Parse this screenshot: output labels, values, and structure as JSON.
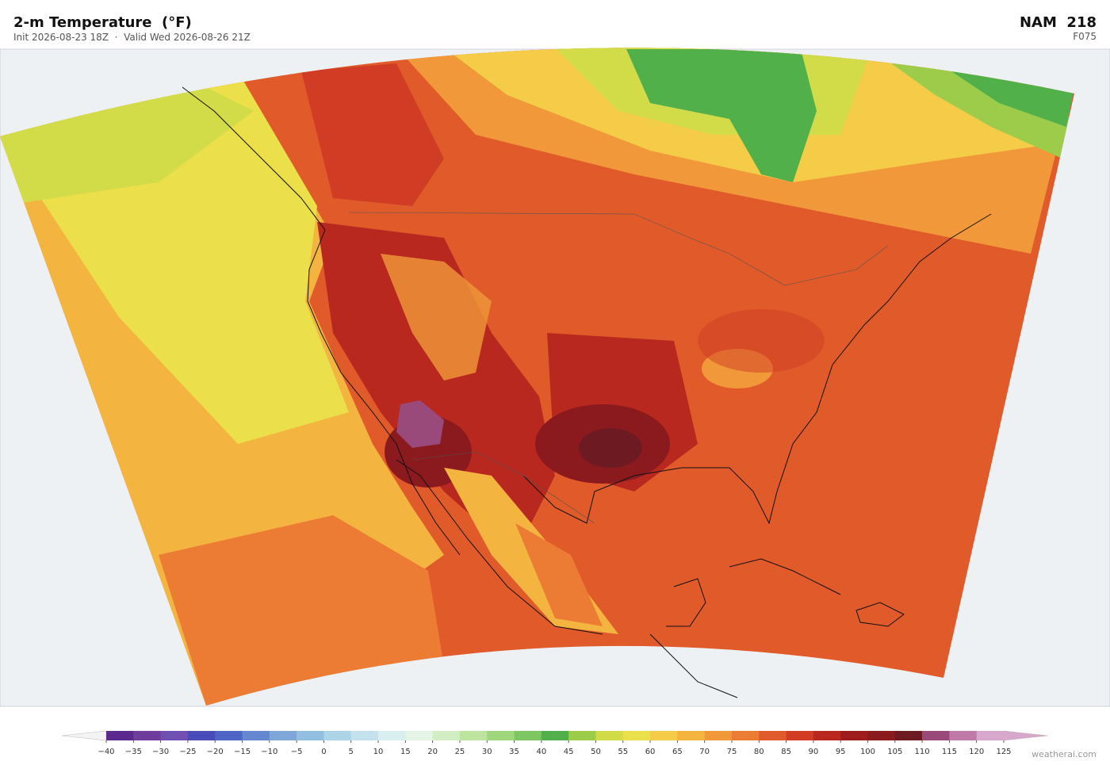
{
  "header": {
    "title": "2-m Temperature  (°F)",
    "subtitle": "Init 2026-08-23 18Z  ·  Valid Wed 2026-08-26 21Z",
    "model": "NAM  218",
    "forecast_hour": "F075"
  },
  "colorbar": {
    "ticks": [
      {
        "value": -40,
        "label": "−40"
      },
      {
        "value": -35,
        "label": "−35"
      },
      {
        "value": -30,
        "label": "−30"
      },
      {
        "value": -25,
        "label": "−25"
      },
      {
        "value": -20,
        "label": "−20"
      },
      {
        "value": -15,
        "label": "−15"
      },
      {
        "value": -10,
        "label": "−10"
      },
      {
        "value": -5,
        "label": "−5"
      },
      0,
      5,
      10,
      15,
      20,
      25,
      30,
      35,
      40,
      45,
      50,
      55,
      60,
      65,
      70,
      75,
      80,
      85,
      90,
      95,
      100,
      105,
      110,
      115,
      120,
      125
    ],
    "colors": [
      "#5b2a8e",
      "#6e3d9e",
      "#7050b0",
      "#4a4ab8",
      "#4f66c8",
      "#6688d0",
      "#7fa6d8",
      "#92bfe0",
      "#aed4ea",
      "#c4e2ee",
      "#d8eef0",
      "#e4f3e6",
      "#d2ecc4",
      "#bde49e",
      "#9fd67c",
      "#7ec662",
      "#52b04a",
      "#9ccc4a",
      "#d2dc48",
      "#ece04a",
      "#f4cc48",
      "#f4b440",
      "#f0983a",
      "#ec7c34",
      "#e05a2a",
      "#d03c24",
      "#b8281e",
      "#9e1c1c",
      "#8a1a1e",
      "#6e1a22",
      "#9a4a7a",
      "#c07aa8",
      "#d8a8cc"
    ],
    "under_color": "#f4f4f4",
    "over_color": "#d8a8cc"
  },
  "footer": {
    "credit": "weatherai.com"
  }
}
